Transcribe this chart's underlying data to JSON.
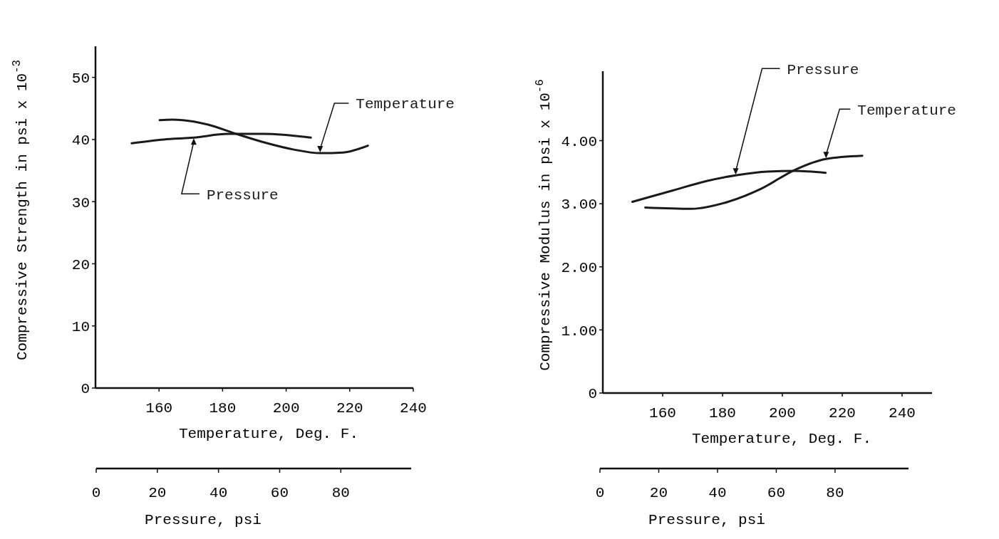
{
  "chart_data": [
    {
      "type": "line",
      "ylabel": "Compressive Strength in psi x 10$^{-3}$",
      "xlabel": "Temperature, Deg. F.",
      "x2label": "Pressure, psi",
      "xlim": [
        140,
        240
      ],
      "xticks": [
        160,
        180,
        200,
        220,
        240
      ],
      "x2lim": [
        0,
        103
      ],
      "x2ticks": [
        0,
        20,
        40,
        60,
        80
      ],
      "ylim": [
        0,
        55
      ],
      "yticks": [
        0,
        10,
        20,
        30,
        40,
        50
      ],
      "series": [
        {
          "name": "Temperature",
          "color": "#1a1a1a",
          "x": [
            160.2,
            164.2,
            175.4,
            183.7,
            193.3,
            202.2,
            210.7,
            217.9,
            225.7
          ],
          "values": [
            43.1,
            43.2,
            42.4,
            41.0,
            39.5,
            38.4,
            37.8,
            37.9,
            39.0
          ]
        },
        {
          "name": "Pressure",
          "color": "#1a1a1a",
          "axis": "x2",
          "x": [
            11.6,
            22.1,
            31.9,
            43.0,
            54.7,
            70.2
          ],
          "values": [
            39.4,
            40.0,
            40.3,
            40.9,
            40.9,
            40.3
          ]
        }
      ]
    },
    {
      "type": "line",
      "ylabel": "Compressive Modulus in psi x 10$^{-6}$",
      "xlabel": "Temperature, Deg. F.",
      "x2label": "Pressure, psi",
      "xlim": [
        140,
        250
      ],
      "xticks": [
        160,
        180,
        200,
        220,
        240
      ],
      "x2lim": [
        0,
        105
      ],
      "x2ticks": [
        0,
        20,
        40,
        60,
        80
      ],
      "ylim": [
        0,
        5.1
      ],
      "yticks": [
        {
          "value": 0,
          "label": "0"
        },
        {
          "value": 1,
          "label": "1.00"
        },
        {
          "value": 2,
          "label": "2.00"
        },
        {
          "value": 3,
          "label": "3.00"
        },
        {
          "value": 4,
          "label": "4.00"
        }
      ],
      "series": [
        {
          "name": "Pressure",
          "color": "#1a1a1a",
          "axis": "x2",
          "x": [
            11.0,
            24.8,
            36.3,
            46.2,
            57.0,
            66.2,
            76.8
          ],
          "values": [
            3.03,
            3.21,
            3.36,
            3.45,
            3.51,
            3.52,
            3.49
          ]
        },
        {
          "name": "Temperature",
          "color": "#1a1a1a",
          "x": [
            154.2,
            169.7,
            181.8,
            193.0,
            204.3,
            214.6,
            226.7
          ],
          "values": [
            2.94,
            2.92,
            3.03,
            3.24,
            3.54,
            3.71,
            3.76
          ]
        }
      ]
    }
  ]
}
